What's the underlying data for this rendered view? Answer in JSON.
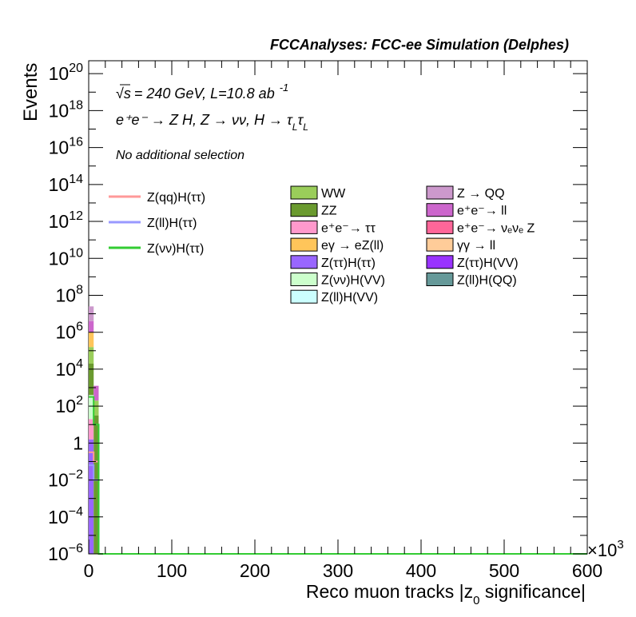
{
  "chart_data": {
    "type": "bar",
    "title": "FCCAnalyses: FCC-ee Simulation (Delphes)",
    "xlabel": "Reco muon tracks |z0 significance|",
    "xlabel_parts": {
      "main": "Reco muon tracks |z",
      "sub": "0",
      "rest": " significance|"
    },
    "ylabel": "Events",
    "x_multiplier": "×10",
    "x_multiplier_exp": "3",
    "xlim": [
      0,
      600
    ],
    "ylim_log10": [
      -6,
      20.7
    ],
    "log_y": true,
    "x_ticks": [
      "0",
      "100",
      "200",
      "300",
      "400",
      "500",
      "600"
    ],
    "y_ticks": [
      {
        "exp": -6,
        "label": "10",
        "sup": "−6"
      },
      {
        "exp": -4,
        "label": "10",
        "sup": "−4"
      },
      {
        "exp": -2,
        "label": "10",
        "sup": "−2"
      },
      {
        "exp": 0,
        "label": "1",
        "sup": ""
      },
      {
        "exp": 2,
        "label": "10",
        "sup": "2"
      },
      {
        "exp": 4,
        "label": "10",
        "sup": "4"
      },
      {
        "exp": 6,
        "label": "10",
        "sup": "6"
      },
      {
        "exp": 8,
        "label": "10",
        "sup": "8"
      },
      {
        "exp": 10,
        "label": "10",
        "sup": "10"
      },
      {
        "exp": 12,
        "label": "10",
        "sup": "12"
      },
      {
        "exp": 14,
        "label": "10",
        "sup": "14"
      },
      {
        "exp": 16,
        "label": "10",
        "sup": "16"
      },
      {
        "exp": 18,
        "label": "10",
        "sup": "18"
      },
      {
        "exp": 20,
        "label": "10",
        "sup": "20"
      }
    ],
    "annotations": {
      "energy": "= 240 GeV, L=10.8 ab",
      "energy_sqrt": "√s",
      "energy_sup": "-1",
      "process": "e⁺e⁻ → Z H, Z → νν, H → τ",
      "process_sub1": "L",
      "process_tau": "τ",
      "process_sub2": "L",
      "selection": "No additional selection"
    },
    "stack_bins": [
      {
        "x0": 0,
        "x1": 6,
        "segments": [
          {
            "name": "ZZ",
            "log_top": 4.3,
            "color": "#6a9a2f"
          },
          {
            "name": "WW",
            "log_top": 5.2,
            "color": "#9acd5a"
          },
          {
            "name": "eγ → eZ(ll)",
            "log_top": 6.0,
            "color": "#ffc55a"
          },
          {
            "name": "e+e- → ll",
            "log_top": 6.6,
            "color": "#cc66cc"
          },
          {
            "name": "Z → QQ",
            "log_top": 7.4,
            "color": "#cc99cc"
          }
        ],
        "low_segments": [
          {
            "name": "Z(ττ)H(ττ)",
            "log_bottom": -6,
            "log_top": 0.2,
            "color": "#9966ff"
          },
          {
            "name": "e+e- → ττ",
            "log_bottom": 0.2,
            "log_top": 1.3,
            "color": "#ff99cc"
          },
          {
            "name": "Z(νν)H(VV)",
            "log_bottom": 1.3,
            "log_top": 2.6,
            "color": "#ccffcc"
          },
          {
            "name": "ZZ",
            "log_bottom": 2.6,
            "log_top": 4.3,
            "color": "#6a9a2f"
          }
        ]
      },
      {
        "x0": 6,
        "x1": 12,
        "segments": [
          {
            "name": "ZZ",
            "log_top": 1.5,
            "color": "#6a9a2f"
          },
          {
            "name": "WW",
            "log_top": 2.3,
            "color": "#9acd5a"
          },
          {
            "name": "e+e- → ll",
            "log_top": 3.1,
            "color": "#cc66cc"
          }
        ],
        "low_segments": []
      }
    ],
    "line_series": [
      {
        "name": "Z(qq)H(ττ)",
        "color": "#ff9999",
        "points": [
          [
            0,
            -0.5
          ],
          [
            6,
            -0.5
          ],
          [
            6,
            -1.0
          ],
          [
            12,
            -1.0
          ],
          [
            12,
            -6
          ]
        ]
      },
      {
        "name": "Z(ll)H(ττ)",
        "color": "#9999ff",
        "points": [
          [
            0,
            -1.2
          ],
          [
            6,
            -1.2
          ],
          [
            6,
            -2.0
          ],
          [
            12,
            -2.0
          ],
          [
            12,
            -6
          ]
        ]
      },
      {
        "name": "Z(νν)H(ττ)",
        "color": "#33cc33",
        "points": [
          [
            0,
            2.5
          ],
          [
            6,
            2.5
          ],
          [
            6,
            1.0
          ],
          [
            12,
            1.0
          ],
          [
            12,
            -6
          ],
          [
            600,
            -6
          ]
        ]
      }
    ],
    "legend_lines": [
      {
        "name": "Z(qq)H(ττ)",
        "color": "#ff9999"
      },
      {
        "name": "Z(ll)H(ττ)",
        "color": "#9999ff"
      },
      {
        "name": "Z(νν)H(ττ)",
        "color": "#33cc33"
      }
    ],
    "legend_fills": [
      {
        "name": "WW",
        "color": "#9acd5a"
      },
      {
        "name": "ZZ",
        "color": "#6a9a2f"
      },
      {
        "name": "e⁺e⁻→ ττ",
        "color": "#ff99cc"
      },
      {
        "name": "eγ → eZ(ll)",
        "color": "#ffc55a"
      },
      {
        "name": "Z(ττ)H(ττ)",
        "color": "#9966ff"
      },
      {
        "name": "Z(νν)H(VV)",
        "color": "#ccffcc"
      },
      {
        "name": "Z(ll)H(VV)",
        "color": "#ccffff"
      },
      {
        "name": "Z → QQ",
        "color": "#cc99cc"
      },
      {
        "name": "e⁺e⁻→ ll",
        "color": "#cc66cc"
      },
      {
        "name": "e⁺e⁻→ νₑνₑ Z",
        "color": "#ff6699"
      },
      {
        "name": "γγ → ll",
        "color": "#ffcc99"
      },
      {
        "name": "Z(ττ)H(VV)",
        "color": "#9933ff"
      },
      {
        "name": "Z(ll)H(QQ)",
        "color": "#669999"
      }
    ]
  }
}
